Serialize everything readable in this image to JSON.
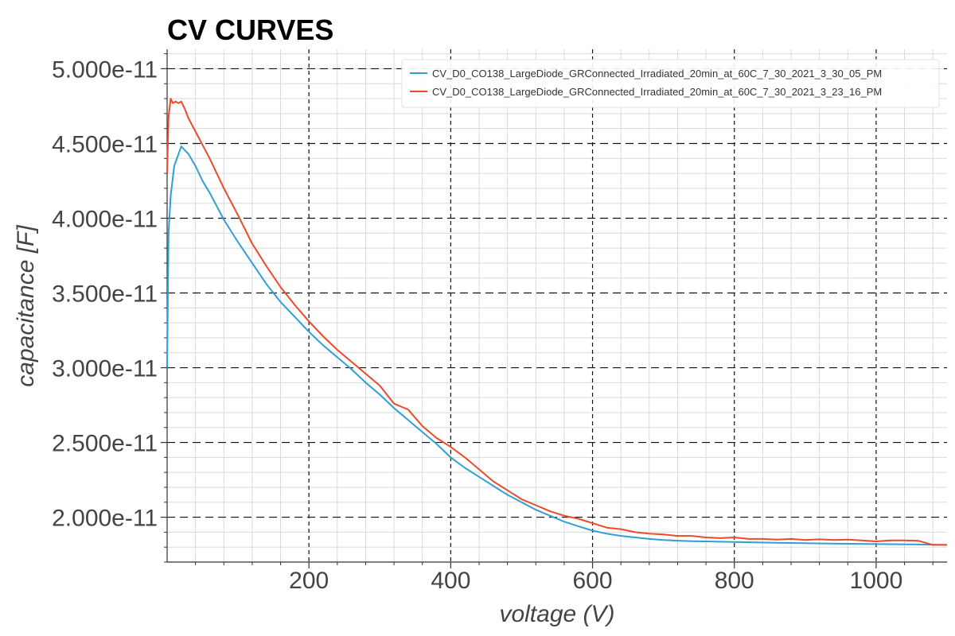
{
  "chart_data": {
    "type": "line",
    "title": "CV CURVES",
    "xlabel": "voltage (V)",
    "ylabel": "capacitance [F]",
    "xlim": [
      0,
      1100
    ],
    "ylim": [
      1.7e-11,
      5.13e-11
    ],
    "xticks": [
      200,
      400,
      600,
      800,
      1000
    ],
    "xtick_labels": [
      "200",
      "400",
      "600",
      "800",
      "1000"
    ],
    "yticks": [
      2e-11,
      2.5e-11,
      3e-11,
      3.5e-11,
      4e-11,
      4.5e-11,
      5e-11
    ],
    "ytick_labels": [
      "2.000e-11",
      "2.500e-11",
      "3.000e-11",
      "3.500e-11",
      "4.000e-11",
      "4.500e-11",
      "5.000e-11"
    ],
    "grid": true,
    "legend_position": "top-right",
    "series": [
      {
        "name": "CV_D0_CO138_LargeDiode_GRConnected_Irradiated_20min_at_60C_7_30_2021_3_30_05_PM",
        "color": "#2ea0d6",
        "x": [
          0,
          2,
          5,
          10,
          20,
          30,
          40,
          50,
          60,
          70,
          80,
          100,
          120,
          140,
          160,
          180,
          200,
          220,
          240,
          260,
          280,
          300,
          320,
          340,
          360,
          380,
          400,
          420,
          440,
          460,
          480,
          500,
          520,
          540,
          560,
          580,
          600,
          620,
          640,
          660,
          680,
          700,
          720,
          740,
          760,
          780,
          800,
          850,
          900,
          950,
          1000,
          1050,
          1100
        ],
        "y": [
          3e-11,
          3.9e-11,
          4.15e-11,
          4.35e-11,
          4.48e-11,
          4.43e-11,
          4.35e-11,
          4.25e-11,
          4.17e-11,
          4.08e-11,
          3.99e-11,
          3.84e-11,
          3.7e-11,
          3.56e-11,
          3.44e-11,
          3.34e-11,
          3.24e-11,
          3.15e-11,
          3.07e-11,
          2.99e-11,
          2.9e-11,
          2.82e-11,
          2.73e-11,
          2.65e-11,
          2.57e-11,
          2.49e-11,
          2.4e-11,
          2.33e-11,
          2.27e-11,
          2.21e-11,
          2.15e-11,
          2.1e-11,
          2.05e-11,
          2.01e-11,
          1.97e-11,
          1.94e-11,
          1.91e-11,
          1.89e-11,
          1.875e-11,
          1.865e-11,
          1.855e-11,
          1.848e-11,
          1.843e-11,
          1.84e-11,
          1.838e-11,
          1.836e-11,
          1.834e-11,
          1.83e-11,
          1.826e-11,
          1.823e-11,
          1.82e-11,
          1.818e-11,
          1.815e-11
        ]
      },
      {
        "name": "CV_D0_CO138_LargeDiode_GRConnected_Irradiated_20min_at_60C_7_30_2021_3_23_16_PM",
        "color": "#ec4a2c",
        "x": [
          0,
          2,
          5,
          8,
          12,
          16,
          20,
          25,
          30,
          40,
          50,
          60,
          70,
          80,
          100,
          120,
          140,
          160,
          180,
          200,
          220,
          240,
          260,
          280,
          300,
          320,
          340,
          360,
          380,
          400,
          420,
          440,
          460,
          480,
          500,
          520,
          540,
          560,
          580,
          600,
          620,
          640,
          660,
          680,
          700,
          720,
          740,
          760,
          780,
          800,
          820,
          840,
          860,
          880,
          900,
          920,
          940,
          960,
          980,
          1000,
          1020,
          1040,
          1060,
          1080,
          1100
        ],
        "y": [
          4.3e-11,
          4.68e-11,
          4.8e-11,
          4.77e-11,
          4.78e-11,
          4.77e-11,
          4.78e-11,
          4.73e-11,
          4.67e-11,
          4.58e-11,
          4.49e-11,
          4.4e-11,
          4.3e-11,
          4.2e-11,
          4.02e-11,
          3.83e-11,
          3.68e-11,
          3.54e-11,
          3.42e-11,
          3.31e-11,
          3.21e-11,
          3.12e-11,
          3.04e-11,
          2.96e-11,
          2.88e-11,
          2.76e-11,
          2.72e-11,
          2.61e-11,
          2.53e-11,
          2.47e-11,
          2.4e-11,
          2.32e-11,
          2.24e-11,
          2.18e-11,
          2.12e-11,
          2.08e-11,
          2.04e-11,
          2.01e-11,
          1.99e-11,
          1.96e-11,
          1.93e-11,
          1.92e-11,
          1.9e-11,
          1.89e-11,
          1.885e-11,
          1.875e-11,
          1.875e-11,
          1.865e-11,
          1.86e-11,
          1.865e-11,
          1.855e-11,
          1.855e-11,
          1.85e-11,
          1.855e-11,
          1.848e-11,
          1.852e-11,
          1.848e-11,
          1.85e-11,
          1.845e-11,
          1.838e-11,
          1.845e-11,
          1.845e-11,
          1.842e-11,
          1.815e-11,
          1.815e-11
        ]
      }
    ]
  }
}
